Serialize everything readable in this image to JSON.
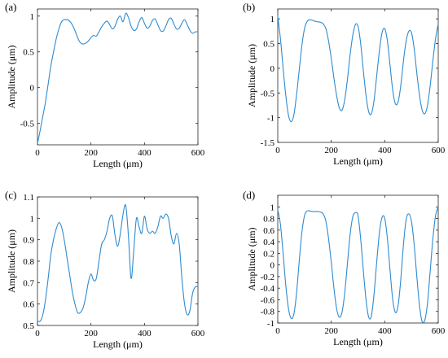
{
  "chart_data": [
    {
      "type": "line",
      "panel_label": "(a)",
      "xlabel": "Length (μm)",
      "ylabel": "Amplitude (μm)",
      "xlim": [
        0,
        600
      ],
      "ylim": [
        -0.8,
        1.1
      ],
      "xticks": [
        0,
        200,
        400,
        600
      ],
      "yticks": [
        -0.5,
        0,
        0.5,
        1
      ],
      "grid": false,
      "series": [
        {
          "color": "#2E8BD0",
          "x": [
            0,
            10,
            20,
            30,
            40,
            50,
            60,
            70,
            80,
            90,
            100,
            110,
            120,
            130,
            140,
            150,
            160,
            170,
            180,
            190,
            200,
            210,
            220,
            230,
            240,
            250,
            260,
            270,
            280,
            290,
            300,
            310,
            320,
            330,
            340,
            350,
            360,
            370,
            380,
            390,
            400,
            410,
            420,
            430,
            440,
            450,
            460,
            470,
            480,
            490,
            500,
            510,
            520,
            530,
            540,
            550,
            560,
            570,
            580,
            590,
            600
          ],
          "y": [
            -0.78,
            -0.6,
            -0.4,
            -0.2,
            0.05,
            0.3,
            0.5,
            0.68,
            0.82,
            0.92,
            0.95,
            0.95,
            0.93,
            0.88,
            0.8,
            0.7,
            0.63,
            0.61,
            0.62,
            0.65,
            0.7,
            0.73,
            0.72,
            0.78,
            0.85,
            0.9,
            0.93,
            0.88,
            0.82,
            0.86,
            0.96,
            1.0,
            0.92,
            1.04,
            0.98,
            0.86,
            0.8,
            0.82,
            0.92,
            0.98,
            0.9,
            0.83,
            0.86,
            0.94,
            0.96,
            0.88,
            0.8,
            0.79,
            0.86,
            0.95,
            0.97,
            0.89,
            0.82,
            0.83,
            0.9,
            0.95,
            0.88,
            0.8,
            0.76,
            0.78,
            0.78
          ]
        }
      ]
    },
    {
      "type": "line",
      "panel_label": "(b)",
      "xlabel": "Length (μm)",
      "ylabel": "Amplitude (μm)",
      "xlim": [
        0,
        600
      ],
      "ylim": [
        -1.5,
        1.2
      ],
      "xticks": [
        0,
        200,
        400,
        600
      ],
      "yticks": [
        -1.5,
        -1,
        -0.5,
        0,
        0.5,
        1
      ],
      "grid": false,
      "series": [
        {
          "color": "#2E8BD0",
          "x": [
            0,
            10,
            20,
            30,
            40,
            50,
            60,
            70,
            80,
            90,
            100,
            110,
            120,
            130,
            140,
            150,
            160,
            170,
            180,
            190,
            200,
            210,
            220,
            230,
            240,
            250,
            260,
            270,
            280,
            290,
            300,
            310,
            320,
            330,
            340,
            350,
            360,
            370,
            380,
            390,
            400,
            410,
            420,
            430,
            440,
            450,
            460,
            470,
            480,
            490,
            500,
            510,
            520,
            530,
            540,
            550,
            560,
            570,
            580,
            590,
            600
          ],
          "y": [
            1.05,
            0.6,
            0.0,
            -0.55,
            -0.95,
            -1.08,
            -0.95,
            -0.55,
            -0.05,
            0.45,
            0.8,
            0.95,
            0.98,
            0.97,
            0.95,
            0.94,
            0.93,
            0.9,
            0.8,
            0.55,
            0.2,
            -0.2,
            -0.55,
            -0.8,
            -0.85,
            -0.65,
            -0.25,
            0.25,
            0.65,
            0.88,
            0.85,
            0.5,
            -0.05,
            -0.55,
            -0.88,
            -0.92,
            -0.65,
            -0.15,
            0.35,
            0.72,
            0.8,
            0.55,
            0.05,
            -0.45,
            -0.72,
            -0.68,
            -0.35,
            0.15,
            0.55,
            0.75,
            0.72,
            0.4,
            -0.1,
            -0.55,
            -0.85,
            -0.92,
            -0.75,
            -0.35,
            0.15,
            0.6,
            0.9
          ]
        }
      ]
    },
    {
      "type": "line",
      "panel_label": "(c)",
      "xlabel": "Length (μm)",
      "ylabel": "Amplitude (μm)",
      "xlim": [
        0,
        600
      ],
      "ylim": [
        0.5,
        1.1
      ],
      "xticks": [
        0,
        200,
        400,
        600
      ],
      "yticks": [
        0.5,
        0.6,
        0.7,
        0.8,
        0.9,
        1,
        1.1
      ],
      "grid": false,
      "series": [
        {
          "color": "#2E8BD0",
          "x": [
            0,
            10,
            20,
            30,
            40,
            50,
            60,
            70,
            80,
            90,
            100,
            110,
            120,
            130,
            140,
            150,
            160,
            170,
            180,
            190,
            200,
            210,
            220,
            230,
            240,
            250,
            260,
            270,
            280,
            290,
            300,
            310,
            320,
            330,
            340,
            350,
            360,
            370,
            380,
            390,
            400,
            410,
            420,
            430,
            440,
            450,
            460,
            470,
            480,
            490,
            500,
            510,
            520,
            530,
            540,
            550,
            560,
            570,
            580,
            590,
            600
          ],
          "y": [
            0.52,
            0.52,
            0.55,
            0.62,
            0.72,
            0.83,
            0.9,
            0.95,
            0.98,
            0.96,
            0.9,
            0.82,
            0.74,
            0.66,
            0.6,
            0.56,
            0.56,
            0.58,
            0.63,
            0.7,
            0.74,
            0.71,
            0.72,
            0.8,
            0.88,
            0.9,
            0.94,
            1.0,
            1.01,
            0.92,
            0.87,
            0.93,
            1.02,
            1.06,
            0.92,
            0.72,
            0.85,
            1.0,
            0.96,
            0.93,
            1.01,
            0.95,
            0.93,
            0.94,
            0.93,
            0.96,
            1.01,
            1.0,
            1.02,
            1.0,
            0.92,
            0.88,
            0.93,
            0.88,
            0.72,
            0.6,
            0.55,
            0.57,
            0.65,
            0.68,
            0.68
          ]
        }
      ]
    },
    {
      "type": "line",
      "panel_label": "(d)",
      "xlabel": "Length (μm)",
      "ylabel": "Amplitude (μm)",
      "xlim": [
        0,
        600
      ],
      "ylim": [
        -1.0,
        1.2
      ],
      "xticks": [
        0,
        200,
        400,
        600
      ],
      "yticks": [
        -1,
        -0.8,
        -0.6,
        -0.4,
        -0.2,
        0,
        0.2,
        0.4,
        0.6,
        0.8,
        1
      ],
      "grid": false,
      "series": [
        {
          "color": "#2E8BD0",
          "x": [
            0,
            10,
            20,
            30,
            40,
            50,
            60,
            70,
            80,
            90,
            100,
            110,
            120,
            130,
            140,
            150,
            160,
            170,
            180,
            190,
            200,
            210,
            220,
            230,
            240,
            250,
            260,
            270,
            280,
            290,
            300,
            310,
            320,
            330,
            340,
            350,
            360,
            370,
            380,
            390,
            400,
            410,
            420,
            430,
            440,
            450,
            460,
            470,
            480,
            490,
            500,
            510,
            520,
            530,
            540,
            550,
            560,
            570,
            580,
            590,
            600
          ],
          "y": [
            0.95,
            0.7,
            0.2,
            -0.35,
            -0.75,
            -0.92,
            -0.85,
            -0.5,
            0.05,
            0.55,
            0.85,
            0.93,
            0.93,
            0.92,
            0.92,
            0.92,
            0.91,
            0.88,
            0.75,
            0.45,
            0.05,
            -0.4,
            -0.75,
            -0.9,
            -0.82,
            -0.5,
            0.0,
            0.5,
            0.82,
            0.9,
            0.85,
            0.45,
            -0.1,
            -0.6,
            -0.9,
            -0.88,
            -0.5,
            0.05,
            0.55,
            0.82,
            0.8,
            0.45,
            -0.1,
            -0.6,
            -0.82,
            -0.7,
            -0.25,
            0.35,
            0.78,
            0.88,
            0.75,
            0.35,
            -0.2,
            -0.7,
            -0.98,
            -0.95,
            -0.65,
            -0.1,
            0.45,
            0.85,
            1.0
          ]
        }
      ]
    }
  ]
}
